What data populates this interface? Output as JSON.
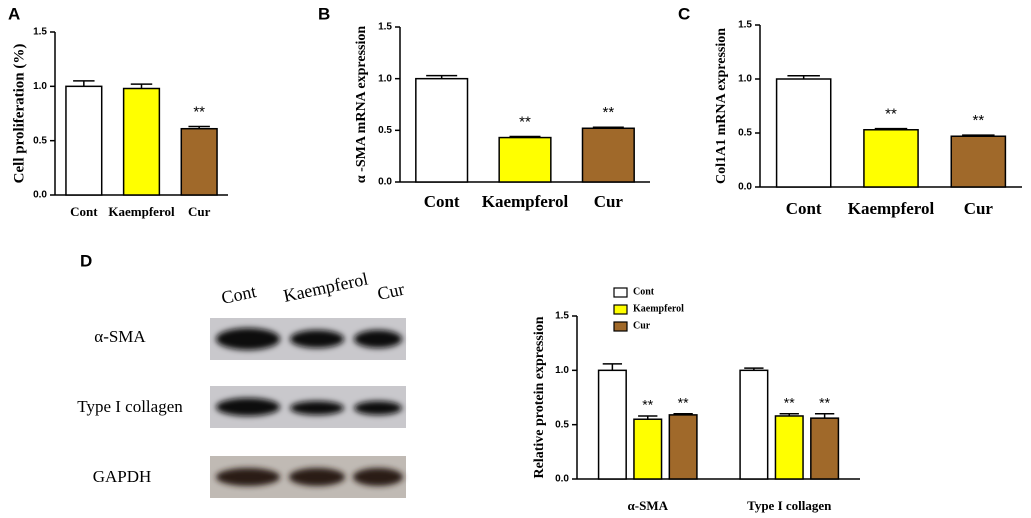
{
  "chart_data": [
    {
      "type": "bar",
      "panel": "A",
      "ylabel": "Cell proliferation (%)",
      "categories": [
        "Cont",
        "Kaempferol",
        "Cur"
      ],
      "values": [
        1.0,
        0.98,
        0.61
      ],
      "errors": [
        0.05,
        0.04,
        0.02
      ],
      "colors": [
        "#ffffff",
        "#ffff00",
        "#a0692a"
      ],
      "significance": [
        null,
        null,
        "**"
      ],
      "ylim": [
        0,
        1.5
      ],
      "yticks": [
        {
          "value": 0,
          "label": "0.0"
        },
        0.5,
        {
          "value": 1,
          "label": "1.0"
        },
        1.5
      ]
    },
    {
      "type": "bar",
      "panel": "B",
      "ylabel": "α -SMA mRNA expression",
      "categories": [
        "Cont",
        "Kaempferol",
        "Cur"
      ],
      "values": [
        1.0,
        0.43,
        0.52
      ],
      "errors": [
        0.03,
        0.01,
        0.01
      ],
      "colors": [
        "#ffffff",
        "#ffff00",
        "#a0692a"
      ],
      "significance": [
        null,
        "**",
        "**"
      ],
      "ylim": [
        0,
        1.5
      ],
      "yticks": [
        {
          "value": 0,
          "label": "0.0"
        },
        0.5,
        {
          "value": 1,
          "label": "1.0"
        },
        1.5
      ]
    },
    {
      "type": "bar",
      "panel": "C",
      "ylabel": "Col1A1 mRNA expression",
      "categories": [
        "Cont",
        "Kaempferol",
        "Cur"
      ],
      "values": [
        1.0,
        0.53,
        0.47
      ],
      "errors": [
        0.03,
        0.01,
        0.01
      ],
      "colors": [
        "#ffffff",
        "#ffff00",
        "#a0692a"
      ],
      "significance": [
        null,
        "**",
        "**"
      ],
      "ylim": [
        0,
        1.5
      ],
      "yticks": [
        {
          "value": 0,
          "label": "0.0"
        },
        0.5,
        {
          "value": 1,
          "label": "1.0"
        },
        1.5
      ]
    },
    {
      "type": "grouped_bar",
      "ylabel": "Relative protein expression",
      "legend": "top-left",
      "categories": [
        "α-SMA",
        "Type  I collagen"
      ],
      "series": [
        {
          "name": "Cont",
          "color": "#ffffff",
          "values": [
            1.0,
            1.0
          ],
          "errors": [
            0.06,
            0.02
          ],
          "significance": [
            null,
            null
          ]
        },
        {
          "name": "Kaempferol",
          "color": "#ffff00",
          "values": [
            0.55,
            0.58
          ],
          "errors": [
            0.03,
            0.02
          ],
          "significance": [
            "**",
            "**"
          ]
        },
        {
          "name": "Cur",
          "color": "#a0692a",
          "values": [
            0.59,
            0.56
          ],
          "errors": [
            0.01,
            0.04
          ],
          "significance": [
            "**",
            "**"
          ]
        }
      ],
      "ylim": [
        0,
        1.5
      ],
      "yticks": [
        {
          "value": 0,
          "label": "0.0"
        },
        0.5,
        {
          "value": 1,
          "label": "1.0"
        },
        1.5
      ]
    }
  ],
  "blot": {
    "panel": "D",
    "lanes": [
      "Cont",
      "Kaempferol",
      "Cur"
    ],
    "rows": [
      "α-SMA",
      "Type I collagen",
      "GAPDH"
    ]
  }
}
